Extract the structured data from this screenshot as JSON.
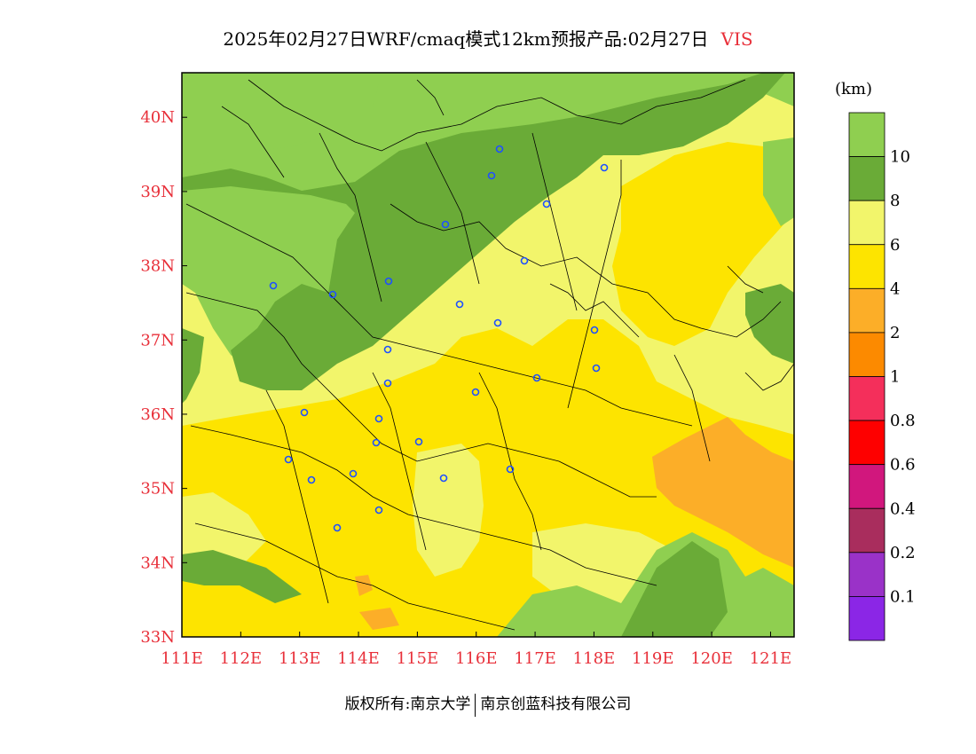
{
  "header": {
    "title": "2025年02月27日WRF/cmaq模式12km预报产品:02月27日",
    "variable": "VIS"
  },
  "map": {
    "lon_labels": [
      "111E",
      "112E",
      "113E",
      "114E",
      "115E",
      "116E",
      "117E",
      "118E",
      "119E",
      "120E",
      "121E"
    ],
    "lat_labels": [
      "33N",
      "34N",
      "35N",
      "36N",
      "37N",
      "38N",
      "39N",
      "40N"
    ],
    "lon_range": [
      111,
      121.4
    ],
    "lat_range": [
      33,
      40.6
    ]
  },
  "legend": {
    "unit": "(km)",
    "levels": [
      "10",
      "8",
      "6",
      "4",
      "2",
      "1",
      "0.8",
      "0.6",
      "0.4",
      "0.2",
      "0.1"
    ],
    "colors": [
      "#8fcf50",
      "#6aab37",
      "#f2f56b",
      "#fde400",
      "#fcae28",
      "#fc8a00",
      "#f42f5b",
      "#fe0000",
      "#d1177d",
      "#a92d5d",
      "#9a32c8",
      "#8b26e6"
    ]
  },
  "footer": {
    "left": "版权所有:南京大学",
    "right": "南京创蓝科技有限公司"
  }
}
